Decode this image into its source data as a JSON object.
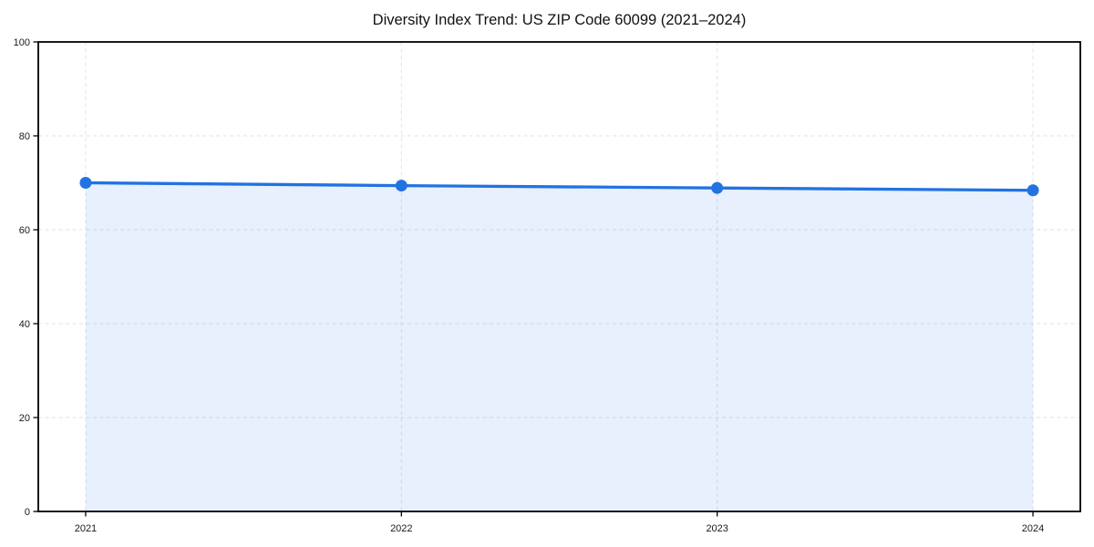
{
  "chart_data": {
    "type": "area",
    "title": "Diversity Index Trend: US ZIP Code 60099 (2021–2024)",
    "x": [
      2021,
      2022,
      2023,
      2024
    ],
    "series": [
      {
        "name": "Diversity Index",
        "values": [
          70.0,
          69.4,
          68.9,
          68.4
        ]
      }
    ],
    "xlabel": "",
    "ylabel": "",
    "xlim": [
      2020.85,
      2024.15
    ],
    "ylim": [
      0,
      100
    ],
    "xticks": [
      2021,
      2022,
      2023,
      2024
    ],
    "yticks": [
      0,
      20,
      40,
      60,
      80,
      100
    ],
    "grid": true,
    "grid_style": "dashed",
    "legend_position": "none",
    "colors": {
      "line": "#2272e2",
      "marker": "#2272e2",
      "fill": "rgba(34,114,226,0.11)",
      "grid": "#e2e2e2",
      "spine": "#000000",
      "tick_text": "#1a1a1a",
      "background": "#ffffff"
    },
    "marker": "circle"
  }
}
